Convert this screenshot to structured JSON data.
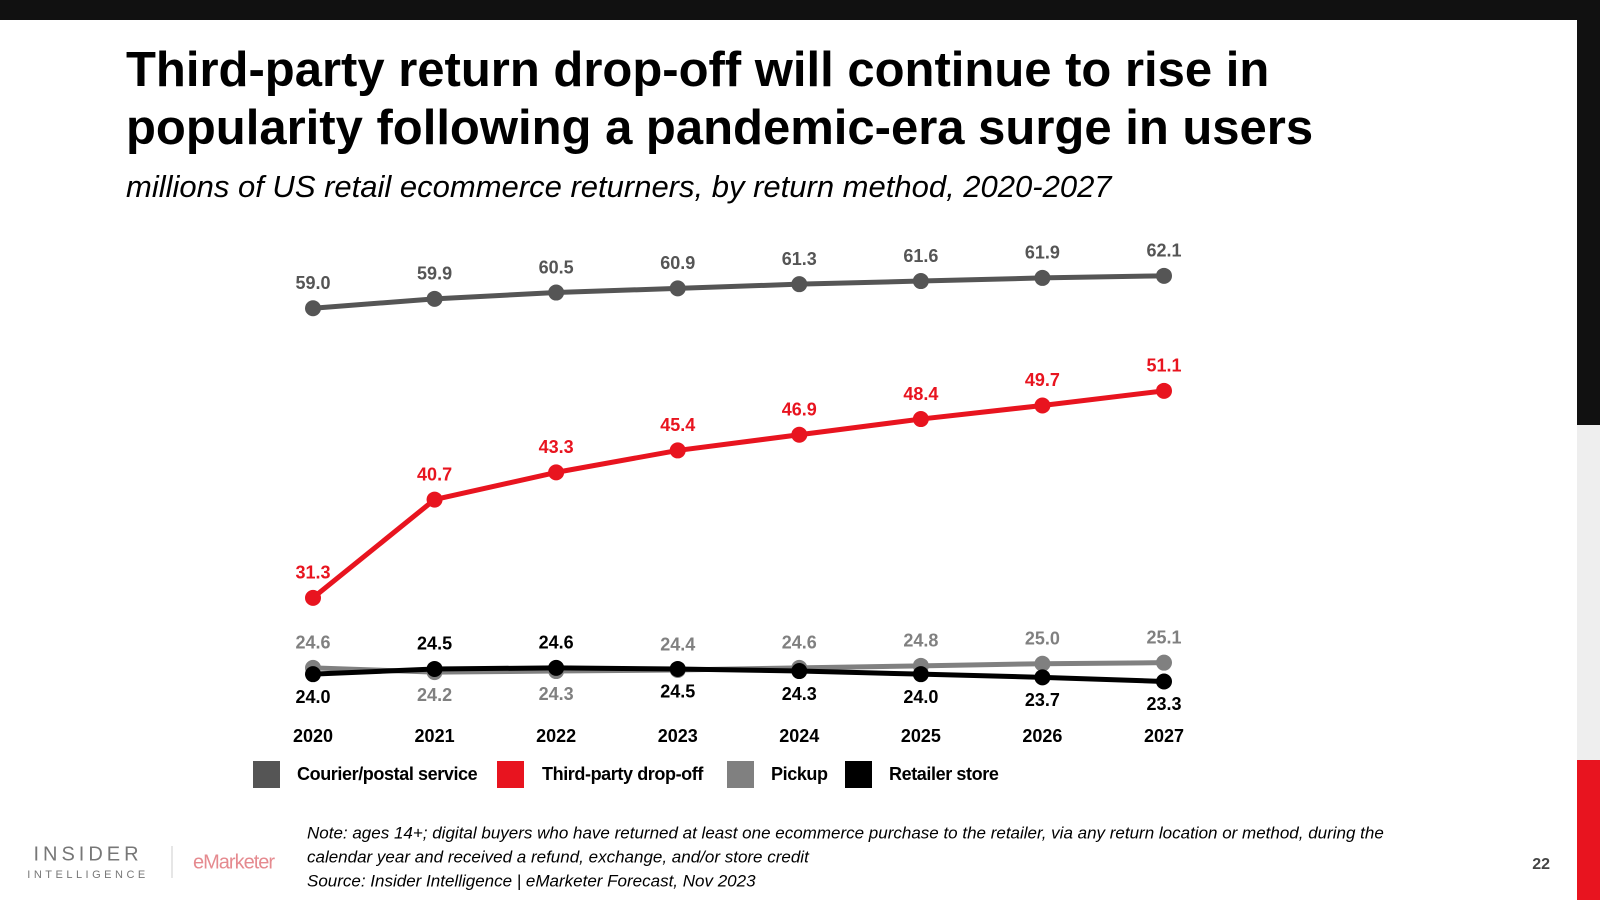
{
  "chart_data": {
    "type": "line",
    "title": [
      "Third-party return drop-off will continue to rise in",
      "popularity following a pandemic-era surge in users"
    ],
    "subtitle": "millions of US retail ecommerce returners, by return method, 2020-2027",
    "categories": [
      "2020",
      "2021",
      "2022",
      "2023",
      "2024",
      "2025",
      "2026",
      "2027"
    ],
    "ylim": [
      20,
      65
    ],
    "series": [
      {
        "name": "Courier/postal service",
        "color": "#555555",
        "values": [
          59,
          59.9,
          60.5,
          60.9,
          61.3,
          61.6,
          61.9,
          62.1
        ],
        "value_labels": [
          "59.0",
          "59.9",
          "60.5",
          "60.9",
          "61.3",
          "61.6",
          "61.9",
          "62.1"
        ]
      },
      {
        "name": "Third-party drop-off",
        "color": "#e8141f",
        "values": [
          31.3,
          40.7,
          43.3,
          45.4,
          46.9,
          48.4,
          49.7,
          51.1
        ],
        "value_labels": [
          "31.3",
          "40.7",
          "43.3",
          "45.4",
          "46.9",
          "48.4",
          "49.7",
          "51.1"
        ]
      },
      {
        "name": "Pickup",
        "color": "#808080",
        "values": [
          24.6,
          24.2,
          24.3,
          24.4,
          24.6,
          24.8,
          25,
          25.1
        ],
        "value_labels": [
          "24.6",
          "24.2",
          "24.3",
          "24.4",
          "24.6",
          "24.8",
          "25.0",
          "25.1"
        ]
      },
      {
        "name": "Retailer store",
        "color": "#000000",
        "values": [
          24,
          24.5,
          24.6,
          24.5,
          24.3,
          24,
          23.7,
          23.3
        ],
        "value_labels": [
          "24.0",
          "24.5",
          "24.6",
          "24.5",
          "24.3",
          "24.0",
          "23.7",
          "23.3"
        ]
      }
    ]
  },
  "footer": {
    "note": [
      "Note: ages 14+; digital buyers who have returned at least one ecommerce purchase to the retailer, via any return location or method, during the",
      "calendar year and received a refund, exchange, and/or store credit"
    ],
    "source": "Source: Insider Intelligence | eMarketer Forecast, Nov 2023",
    "logo": [
      "INSIDER",
      "INTELLIGENCE"
    ],
    "brand": "eMarketer",
    "page_number": "22"
  }
}
